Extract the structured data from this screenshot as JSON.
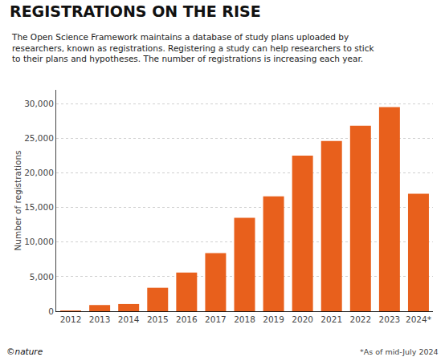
{
  "chart_data": {
    "type": "bar",
    "title": "REGISTRATIONS ON THE RISE",
    "subtitle": "The Open Science Framework maintains a database of study plans uploaded by\nresearchers, known as registrations. Registering a study can help researchers to stick\nto their plans and hypotheses. The number of registrations is increasing each year.",
    "ylabel": "Number of registrations",
    "categories": [
      "2012",
      "2013",
      "2014",
      "2015",
      "2016",
      "2017",
      "2018",
      "2019",
      "2020",
      "2021",
      "2022",
      "2023",
      "2024*"
    ],
    "values": [
      50,
      900,
      1050,
      3400,
      5600,
      8400,
      13500,
      16600,
      22500,
      24600,
      26800,
      29500,
      17000
    ],
    "color": "#E8601C",
    "ylim": [
      0,
      32000
    ],
    "yticks": [
      0,
      {
        "value": 5000,
        "label": "5,000"
      },
      {
        "value": 10000,
        "label": "10,000"
      },
      {
        "value": 15000,
        "label": "15,000"
      },
      {
        "value": 20000,
        "label": "20,000"
      },
      {
        "value": 25000,
        "label": "25,000"
      },
      {
        "value": 30000,
        "label": "30,000"
      }
    ],
    "grid": true,
    "annotations": [
      "*As of mid-July 2024",
      "©nature"
    ]
  }
}
